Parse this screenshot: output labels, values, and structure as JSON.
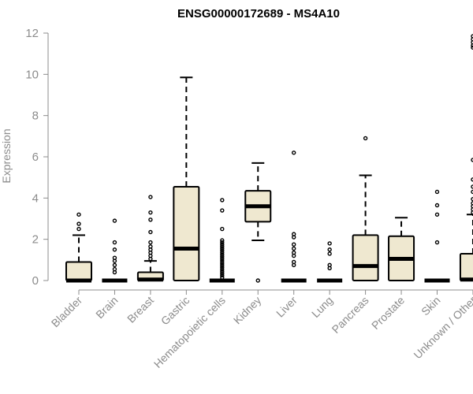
{
  "chart_data": {
    "type": "box",
    "title": "ENSG00000172689 - MS4A10",
    "ylabel": "Expression",
    "xlabel": "",
    "ylim": [
      0,
      12
    ],
    "yticks": [
      0,
      2,
      4,
      6,
      8,
      10,
      12
    ],
    "grid": false,
    "legend": "none",
    "colors": {
      "box_fill": "#efe8d0",
      "stroke": "#000000",
      "axis": "#8c8c8c"
    },
    "categories": [
      "Bladder",
      "Brain",
      "Breast",
      "Gastric",
      "Hematopoietic cells",
      "Kidney",
      "Liver",
      "Lung",
      "Pancreas",
      "Prostate",
      "Skin",
      "Unknown / Other"
    ],
    "boxes": [
      {
        "q1": 0,
        "median": 0,
        "q3": 0.9,
        "whisker_low": 0,
        "whisker_high": 2.2,
        "outliers": [
          2.5,
          2.75,
          3.2
        ]
      },
      {
        "q1": 0,
        "median": 0,
        "q3": 0,
        "whisker_low": 0,
        "whisker_high": 0,
        "outliers": [
          0.4,
          0.55,
          0.75,
          0.95,
          1.1,
          1.5,
          1.85,
          2.9
        ]
      },
      {
        "q1": 0,
        "median": 0.05,
        "q3": 0.4,
        "whisker_low": 0,
        "whisker_high": 0.95,
        "outliers": [
          1.05,
          1.2,
          1.35,
          1.5,
          1.65,
          1.85,
          2.35,
          2.95,
          3.3,
          4.05
        ]
      },
      {
        "q1": 0,
        "median": 1.55,
        "q3": 4.55,
        "whisker_low": 0,
        "whisker_high": 9.85,
        "outliers": []
      },
      {
        "q1": 0,
        "median": 0,
        "q3": 0,
        "whisker_low": 0,
        "whisker_high": 0,
        "outliers": [
          0.15,
          0.25,
          0.35,
          0.45,
          0.55,
          0.65,
          0.75,
          0.85,
          0.95,
          1.05,
          1.15,
          1.25,
          1.35,
          1.45,
          1.55,
          1.65,
          1.75,
          1.85,
          1.95,
          2.5,
          3.4,
          3.9
        ]
      },
      {
        "q1": 2.85,
        "median": 3.6,
        "q3": 4.35,
        "whisker_low": 1.95,
        "whisker_high": 5.7,
        "outliers": [
          0
        ]
      },
      {
        "q1": 0,
        "median": 0,
        "q3": 0,
        "whisker_low": 0,
        "whisker_high": 0,
        "outliers": [
          0.75,
          0.9,
          1.2,
          1.35,
          1.55,
          1.75,
          2.1,
          2.25,
          6.2
        ]
      },
      {
        "q1": 0,
        "median": 0,
        "q3": 0,
        "whisker_low": 0,
        "whisker_high": 0,
        "outliers": [
          0.6,
          0.75,
          1.3,
          1.5,
          1.8
        ]
      },
      {
        "q1": 0,
        "median": 0.7,
        "q3": 2.2,
        "whisker_low": 0,
        "whisker_high": 5.1,
        "outliers": [
          6.9
        ]
      },
      {
        "q1": 0,
        "median": 1.05,
        "q3": 2.15,
        "whisker_low": 0,
        "whisker_high": 3.05,
        "outliers": []
      },
      {
        "q1": 0,
        "median": 0,
        "q3": 0,
        "whisker_low": 0,
        "whisker_high": 0,
        "outliers": [
          1.85,
          3.2,
          3.65,
          4.3
        ]
      },
      {
        "q1": 0,
        "median": 0.05,
        "q3": 1.3,
        "whisker_low": 0,
        "whisker_high": 3.2,
        "outliers": [
          3.3,
          3.45,
          3.6,
          3.75,
          3.95,
          4.3,
          4.55,
          4.9,
          5.85,
          11.3,
          11.4,
          11.55,
          11.7,
          11.85
        ]
      }
    ]
  }
}
